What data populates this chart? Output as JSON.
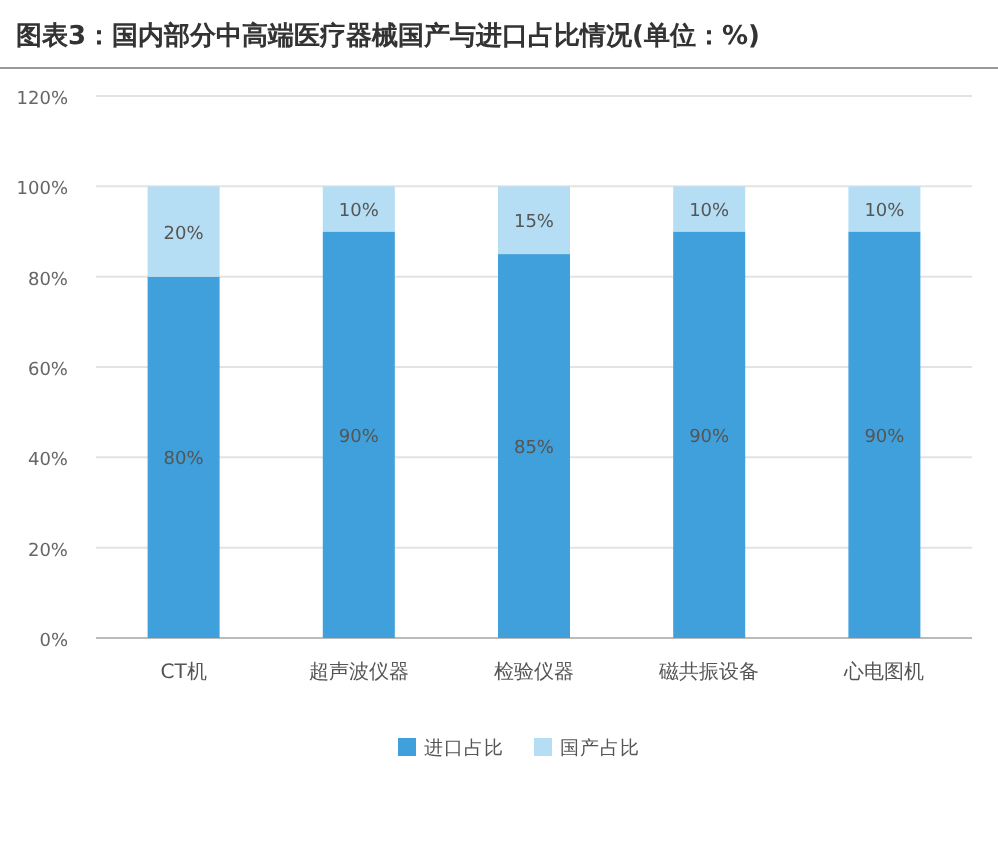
{
  "chart_data": {
    "type": "bar",
    "title": "图表3：国内部分中高端医疗器械国产与进口占比情况(单位：%)",
    "categories": [
      "CT机",
      "超声波仪器",
      "检验仪器",
      "磁共振设备",
      "心电图机"
    ],
    "series": [
      {
        "name": "进口占比",
        "color": "#3fa0db",
        "values": [
          80,
          90,
          85,
          90,
          90
        ],
        "value_labels": [
          "80%",
          "90%",
          "85%",
          "90%",
          "90%"
        ]
      },
      {
        "name": "国产占比",
        "color": "#b5def4",
        "values": [
          20,
          10,
          15,
          10,
          10
        ],
        "value_labels": [
          "20%",
          "10%",
          "15%",
          "10%",
          "10%"
        ]
      }
    ],
    "stacked": true,
    "ylim": [
      0,
      120
    ],
    "yticks": [
      {
        "value": 0,
        "label": "0%"
      },
      {
        "value": 20,
        "label": "20%"
      },
      {
        "value": 40,
        "label": "40%"
      },
      {
        "value": 60,
        "label": "60%"
      },
      {
        "value": 80,
        "label": "80%"
      },
      {
        "value": 100,
        "label": "100%"
      },
      {
        "value": 120,
        "label": "120%"
      }
    ],
    "grid": "y",
    "legend": "bottom"
  }
}
